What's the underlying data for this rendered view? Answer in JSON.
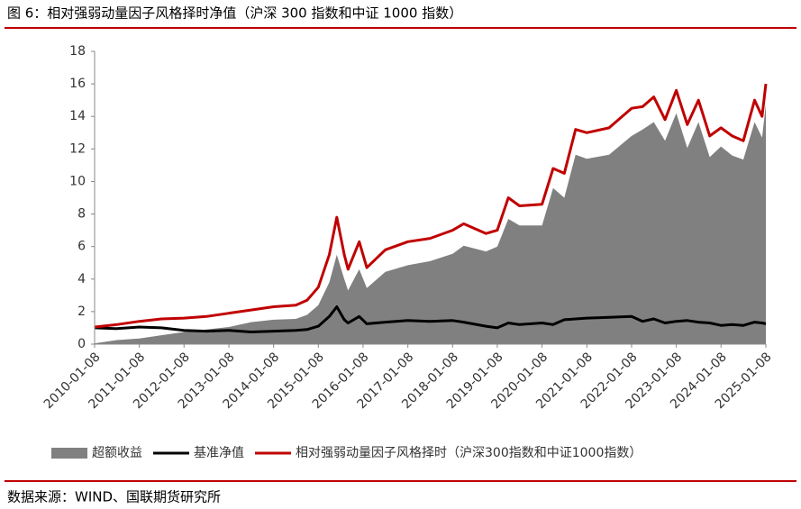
{
  "chart_data": {
    "type": "line",
    "title": "图 6：相对强弱动量因子风格择时净值（沪深 300 指数和中证 1000 指数）",
    "source": "数据来源：WIND、国联期货研究所",
    "x": [
      "2010-01-08",
      "2010-07-08",
      "2011-01-08",
      "2011-07-08",
      "2012-01-08",
      "2012-07-08",
      "2013-01-08",
      "2013-07-08",
      "2014-01-08",
      "2014-07-08",
      "2014-10-08",
      "2015-01-08",
      "2015-04-08",
      "2015-06-08",
      "2015-08-08",
      "2015-09-08",
      "2015-12-08",
      "2016-02-08",
      "2016-07-08",
      "2017-01-08",
      "2017-07-08",
      "2018-01-08",
      "2018-04-08",
      "2018-10-08",
      "2019-01-08",
      "2019-04-08",
      "2019-07-08",
      "2020-01-08",
      "2020-04-08",
      "2020-07-08",
      "2020-10-08",
      "2021-01-08",
      "2021-07-08",
      "2022-01-08",
      "2022-04-08",
      "2022-07-08",
      "2022-10-08",
      "2023-01-08",
      "2023-04-08",
      "2023-07-08",
      "2023-10-08",
      "2024-01-08",
      "2024-04-08",
      "2024-07-08",
      "2024-10-08",
      "2024-12-08",
      "2025-01-08"
    ],
    "series": [
      {
        "name": "超额收益",
        "color": "#808080",
        "style": "area",
        "values": [
          0.05,
          0.25,
          0.35,
          0.55,
          0.75,
          0.9,
          1.05,
          1.35,
          1.5,
          1.55,
          1.8,
          2.4,
          3.8,
          5.5,
          4.0,
          3.3,
          4.6,
          3.45,
          4.45,
          4.85,
          5.1,
          5.55,
          6.05,
          5.7,
          6.0,
          7.7,
          7.3,
          7.3,
          9.6,
          9.0,
          11.65,
          11.4,
          11.65,
          12.8,
          13.2,
          13.65,
          12.5,
          14.2,
          12.05,
          13.65,
          11.5,
          12.15,
          11.6,
          11.35,
          13.65,
          12.7,
          14.75
        ]
      },
      {
        "name": "基准净值",
        "color": "#000000",
        "style": "line",
        "values": [
          1.0,
          0.95,
          1.05,
          1.0,
          0.85,
          0.8,
          0.85,
          0.75,
          0.8,
          0.85,
          0.9,
          1.1,
          1.7,
          2.3,
          1.5,
          1.3,
          1.7,
          1.25,
          1.35,
          1.45,
          1.4,
          1.45,
          1.35,
          1.1,
          1.0,
          1.3,
          1.2,
          1.3,
          1.2,
          1.5,
          1.55,
          1.6,
          1.65,
          1.7,
          1.4,
          1.55,
          1.3,
          1.4,
          1.45,
          1.35,
          1.3,
          1.15,
          1.2,
          1.15,
          1.35,
          1.3,
          1.25
        ]
      },
      {
        "name": "相对强弱动量因子风格择时（沪深300指数和中证1000指数）",
        "color": "#c00000",
        "style": "line",
        "values": [
          1.05,
          1.2,
          1.4,
          1.55,
          1.6,
          1.7,
          1.9,
          2.1,
          2.3,
          2.4,
          2.7,
          3.5,
          5.5,
          7.8,
          5.5,
          4.6,
          6.3,
          4.7,
          5.8,
          6.3,
          6.5,
          7.0,
          7.4,
          6.8,
          7.0,
          9.0,
          8.5,
          8.6,
          10.8,
          10.5,
          13.2,
          13.0,
          13.3,
          14.5,
          14.6,
          15.2,
          13.8,
          15.6,
          13.5,
          15.0,
          12.8,
          13.3,
          12.8,
          12.5,
          15.0,
          14.0,
          16.0
        ]
      }
    ],
    "xlim": [
      "2010-01-08",
      "2025-01-08"
    ],
    "xticks": [
      "2010-01-08",
      "2011-01-08",
      "2012-01-08",
      "2013-01-08",
      "2014-01-08",
      "2015-01-08",
      "2016-01-08",
      "2017-01-08",
      "2018-01-08",
      "2019-01-08",
      "2020-01-08",
      "2021-01-08",
      "2022-01-08",
      "2023-01-08",
      "2024-01-08",
      "2025-01-08"
    ],
    "ylim": [
      0,
      18
    ],
    "yticks": [
      0,
      2,
      4,
      6,
      8,
      10,
      12,
      14,
      16,
      18
    ],
    "grid": false
  }
}
